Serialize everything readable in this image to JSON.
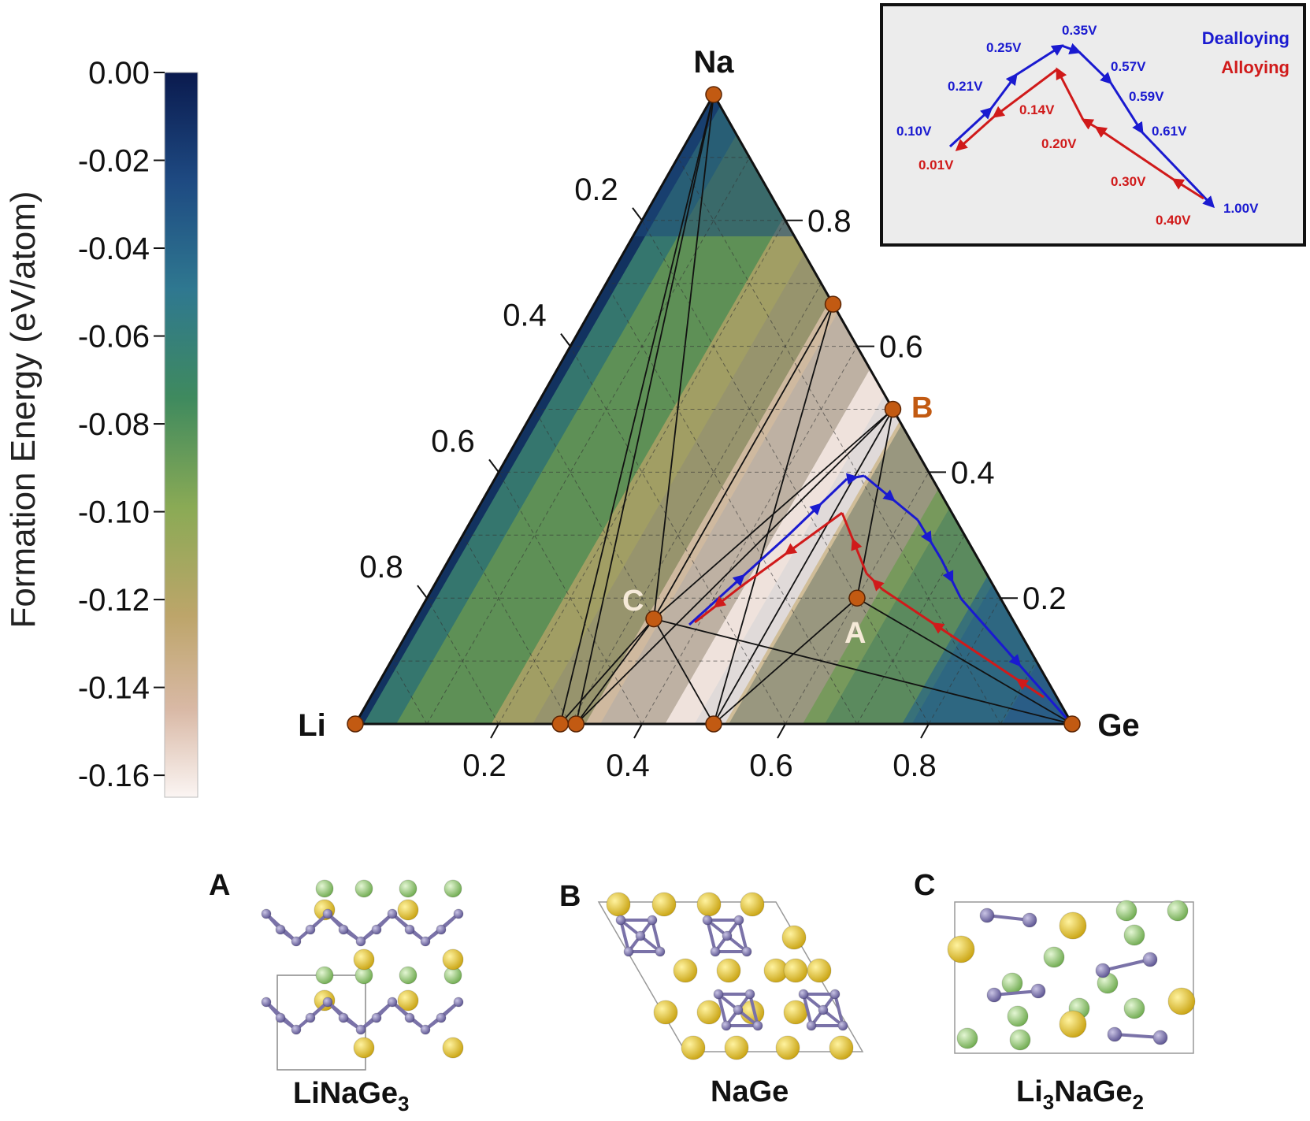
{
  "chart_data": {
    "type": "ternary",
    "title": "",
    "vertices": {
      "top": "Na",
      "left": "Li",
      "right": "Ge"
    },
    "axis_ticks": {
      "bottom": [
        "0.2",
        "0.4",
        "0.6",
        "0.8"
      ],
      "left": [
        "0.2",
        "0.4",
        "0.6",
        "0.8"
      ],
      "right": [
        "0.8",
        "0.6",
        "0.4",
        "0.2"
      ]
    },
    "colorbar": {
      "label": "Formation Energy (eV/atom)",
      "ticks": [
        "0.00",
        "-0.02",
        "-0.04",
        "-0.06",
        "-0.08",
        "-0.10",
        "-0.12",
        "-0.14",
        "-0.16"
      ],
      "range": [
        -0.165,
        0.0
      ]
    },
    "stable_phases": [
      {
        "name": "Na",
        "Li": 0.0,
        "Na": 1.0,
        "Ge": 0.0
      },
      {
        "name": "Li",
        "Li": 1.0,
        "Na": 0.0,
        "Ge": 0.0
      },
      {
        "name": "Ge",
        "Li": 0.0,
        "Na": 0.0,
        "Ge": 1.0
      },
      {
        "name": "",
        "Li": 0.0,
        "Na": 0.667,
        "Ge": 0.333
      },
      {
        "name": "B",
        "Li": 0.0,
        "Na": 0.5,
        "Ge": 0.5
      },
      {
        "name": "A",
        "Li": 0.2,
        "Na": 0.2,
        "Ge": 0.6
      },
      {
        "name": "C",
        "Li": 0.5,
        "Na": 0.167,
        "Ge": 0.333
      },
      {
        "name": "",
        "Li": 0.714,
        "Na": 0.0,
        "Ge": 0.286
      },
      {
        "name": "",
        "Li": 0.692,
        "Na": 0.0,
        "Ge": 0.308
      },
      {
        "name": "",
        "Li": 0.5,
        "Na": 0.0,
        "Ge": 0.5
      }
    ],
    "pathways": [
      {
        "name": "Dealloying",
        "color": "#1a1ad0"
      },
      {
        "name": "Alloying",
        "color": "#d01a1a"
      }
    ],
    "inset": {
      "dealloying_voltages": [
        "0.10V",
        "0.21V",
        "0.25V",
        "0.35V",
        "0.57V",
        "0.59V",
        "0.61V",
        "1.00V"
      ],
      "alloying_voltages": [
        "0.01V",
        "0.14V",
        "0.20V",
        "0.30V",
        "0.40V"
      ],
      "legend": [
        "Dealloying",
        "Alloying"
      ]
    }
  },
  "structures": {
    "panels": [
      {
        "label": "A",
        "formula": "LiNaGe",
        "sub": "3",
        "tail": ""
      },
      {
        "label": "B",
        "formula": "NaGe",
        "sub": "",
        "tail": ""
      },
      {
        "label": "C",
        "formula": "Li",
        "sub": "3",
        "tail": "NaGe",
        "sub2": "2"
      }
    ]
  },
  "colors": {
    "na_atom": "#e8c42a",
    "li_atom": "#8ec96e",
    "ge_atom": "#7a72a8",
    "point": "#c25a12",
    "dealloy": "#1a1ad0",
    "alloy": "#d01a1a"
  }
}
